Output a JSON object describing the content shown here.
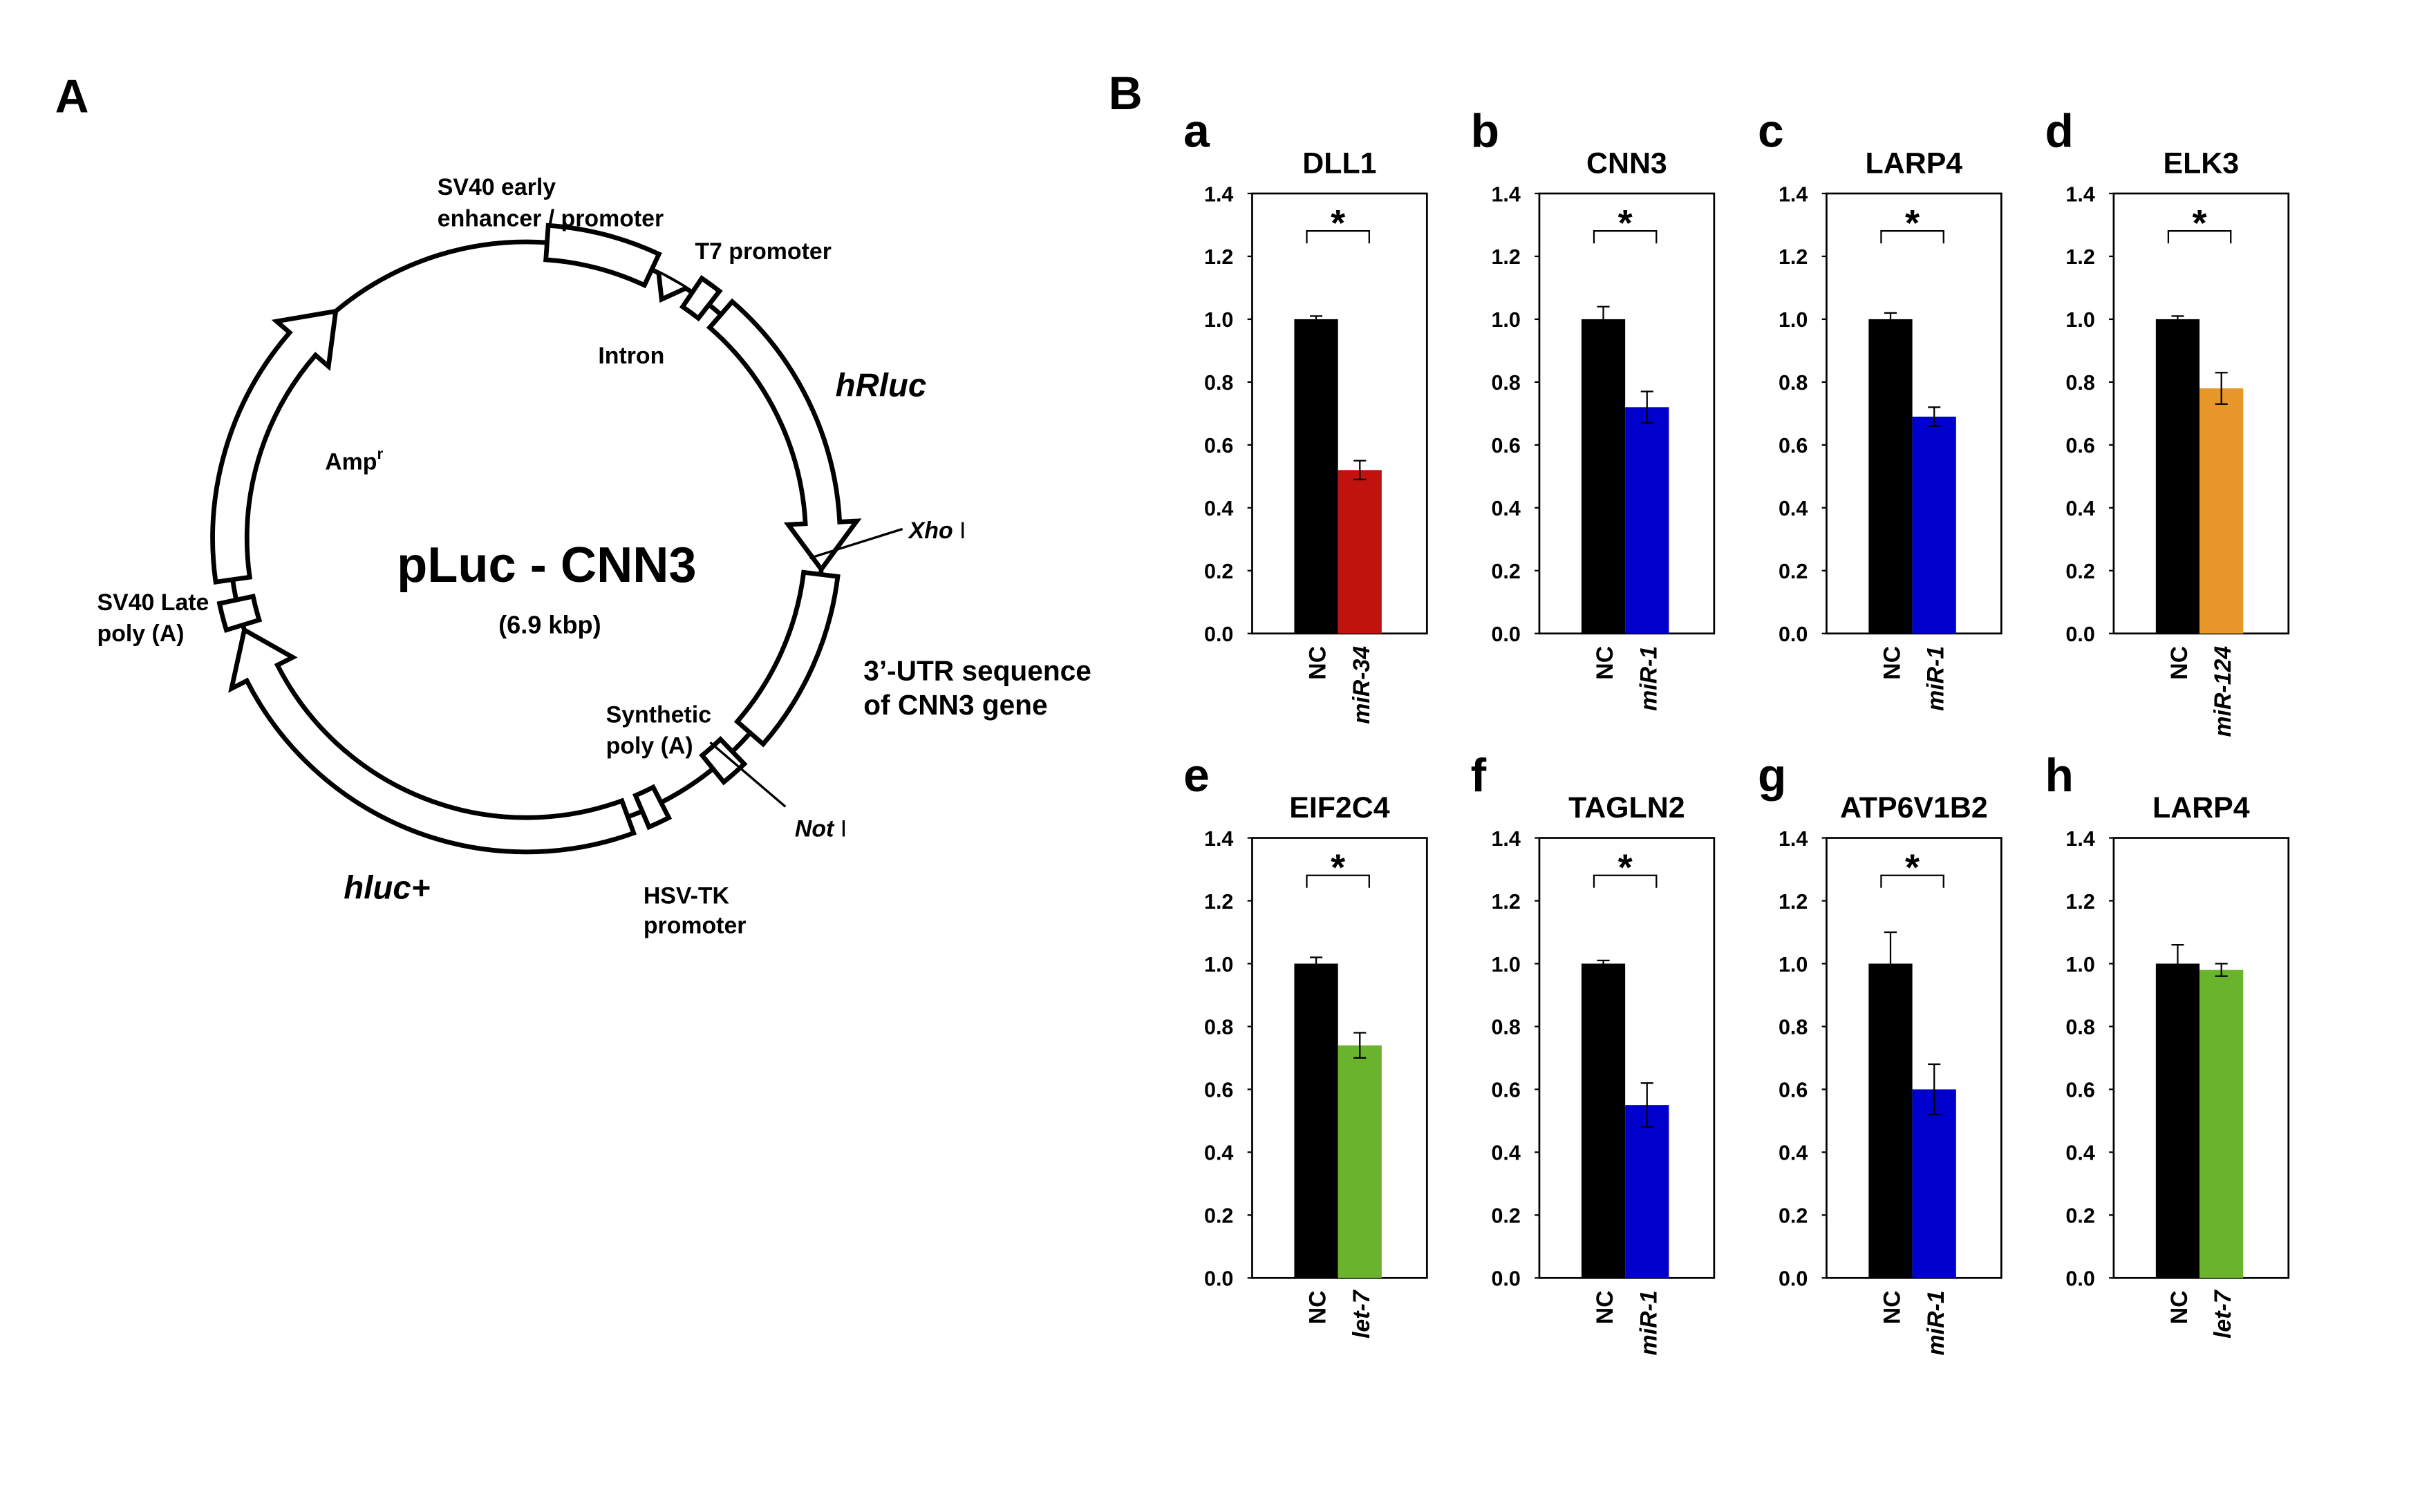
{
  "panels": {
    "A": "A",
    "B": "B"
  },
  "plasmid": {
    "title": "pLuc - CNN3",
    "size": "(6.9 kbp)",
    "sv40_early": [
      "SV40 early",
      "enhancer / promoter"
    ],
    "t7": "T7 promoter",
    "intron": "Intron",
    "hrluc": "hRluc",
    "xho": {
      "italic": "Xho",
      "text": " I"
    },
    "utr": [
      "3’-UTR sequence",
      "of CNN3 gene"
    ],
    "synthetic_polya": [
      "Synthetic",
      "poly (A)"
    ],
    "not": {
      "italic": "Not",
      "text": " I"
    },
    "hsvtk": [
      "HSV-TK",
      "promoter"
    ],
    "hluc": "hluc+",
    "sv40_late": [
      "SV40 Late",
      "poly (A)"
    ],
    "amp": {
      "label": "Amp",
      "superscript": "r"
    }
  },
  "chart_data": [
    {
      "type": "bar",
      "panel": "a",
      "title": "DLL1",
      "categories": [
        "NC",
        "miR-34"
      ],
      "values": [
        1.0,
        0.52
      ],
      "errors": [
        0.01,
        0.03
      ],
      "colors": [
        "#000000",
        "#c0120f"
      ],
      "annotation": "*",
      "ylim": [
        0,
        1.4
      ],
      "yticks": [
        {
          "value": 0,
          "label": "0.0"
        },
        0.2,
        0.4,
        0.6,
        0.8,
        {
          "value": 1,
          "label": "1.0"
        },
        1.2,
        1.4
      ]
    },
    {
      "type": "bar",
      "panel": "b",
      "title": "CNN3",
      "categories": [
        "NC",
        "miR-1"
      ],
      "values": [
        1.0,
        0.72
      ],
      "errors": [
        0.04,
        0.05
      ],
      "colors": [
        "#000000",
        "#0000cc"
      ],
      "annotation": "*",
      "ylim": [
        0,
        1.4
      ],
      "yticks": [
        {
          "value": 0,
          "label": "0.0"
        },
        0.2,
        0.4,
        0.6,
        0.8,
        {
          "value": 1,
          "label": "1.0"
        },
        1.2,
        1.4
      ]
    },
    {
      "type": "bar",
      "panel": "c",
      "title": "LARP4",
      "categories": [
        "NC",
        "miR-1"
      ],
      "values": [
        1.0,
        0.69
      ],
      "errors": [
        0.02,
        0.03
      ],
      "colors": [
        "#000000",
        "#0000cc"
      ],
      "annotation": "*",
      "ylim": [
        0,
        1.4
      ],
      "yticks": [
        {
          "value": 0,
          "label": "0.0"
        },
        0.2,
        0.4,
        0.6,
        0.8,
        {
          "value": 1,
          "label": "1.0"
        },
        1.2,
        1.4
      ]
    },
    {
      "type": "bar",
      "panel": "d",
      "title": "ELK3",
      "categories": [
        "NC",
        "miR-124"
      ],
      "values": [
        1.0,
        0.78
      ],
      "errors": [
        0.01,
        0.05
      ],
      "colors": [
        "#000000",
        "#e8982a"
      ],
      "annotation": "*",
      "ylim": [
        0,
        1.4
      ],
      "yticks": [
        {
          "value": 0,
          "label": "0.0"
        },
        0.2,
        0.4,
        0.6,
        0.8,
        {
          "value": 1,
          "label": "1.0"
        },
        1.2,
        1.4
      ]
    },
    {
      "type": "bar",
      "panel": "e",
      "title": "EIF2C4",
      "categories": [
        "NC",
        "let-7"
      ],
      "values": [
        1.0,
        0.74
      ],
      "errors": [
        0.02,
        0.04
      ],
      "colors": [
        "#000000",
        "#6ab42d"
      ],
      "annotation": "*",
      "ylim": [
        0,
        1.4
      ],
      "yticks": [
        {
          "value": 0,
          "label": "0.0"
        },
        0.2,
        0.4,
        0.6,
        0.8,
        {
          "value": 1,
          "label": "1.0"
        },
        1.2,
        1.4
      ]
    },
    {
      "type": "bar",
      "panel": "f",
      "title": "TAGLN2",
      "categories": [
        "NC",
        "miR-1"
      ],
      "values": [
        1.0,
        0.55
      ],
      "errors": [
        0.01,
        0.07
      ],
      "colors": [
        "#000000",
        "#0000cc"
      ],
      "annotation": "*",
      "ylim": [
        0,
        1.4
      ],
      "yticks": [
        {
          "value": 0,
          "label": "0.0"
        },
        0.2,
        0.4,
        0.6,
        0.8,
        {
          "value": 1,
          "label": "1.0"
        },
        1.2,
        1.4
      ]
    },
    {
      "type": "bar",
      "panel": "g",
      "title": "ATP6V1B2",
      "categories": [
        "NC",
        "miR-1"
      ],
      "values": [
        1.0,
        0.6
      ],
      "errors": [
        0.1,
        0.08
      ],
      "colors": [
        "#000000",
        "#0000cc"
      ],
      "annotation": "*",
      "ylim": [
        0,
        1.4
      ],
      "yticks": [
        {
          "value": 0,
          "label": "0.0"
        },
        0.2,
        0.4,
        0.6,
        0.8,
        {
          "value": 1,
          "label": "1.0"
        },
        1.2,
        1.4
      ]
    },
    {
      "type": "bar",
      "panel": "h",
      "title": "LARP4",
      "categories": [
        "NC",
        "let-7"
      ],
      "values": [
        1.0,
        0.98
      ],
      "errors": [
        0.06,
        0.02
      ],
      "colors": [
        "#000000",
        "#6ab42d"
      ],
      "ylim": [
        0,
        1.4
      ],
      "yticks": [
        {
          "value": 0,
          "label": "0.0"
        },
        0.2,
        0.4,
        0.6,
        0.8,
        {
          "value": 1,
          "label": "1.0"
        },
        1.2,
        1.4
      ]
    }
  ]
}
